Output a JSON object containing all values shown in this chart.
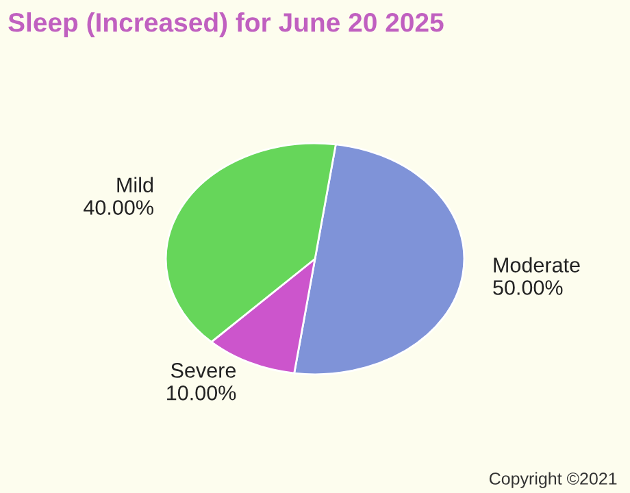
{
  "chart_data": {
    "type": "pie",
    "title": "Sleep (Increased) for June 20 2025",
    "categories": [
      "Moderate",
      "Severe",
      "Mild"
    ],
    "values": [
      50,
      10,
      40
    ],
    "value_labels": [
      "50.00%",
      "10.00%",
      "40.00%"
    ],
    "colors": [
      "#7f93d8",
      "#cc55cc",
      "#66d65a"
    ],
    "annotations": [
      "Copyright ©2021"
    ]
  }
}
